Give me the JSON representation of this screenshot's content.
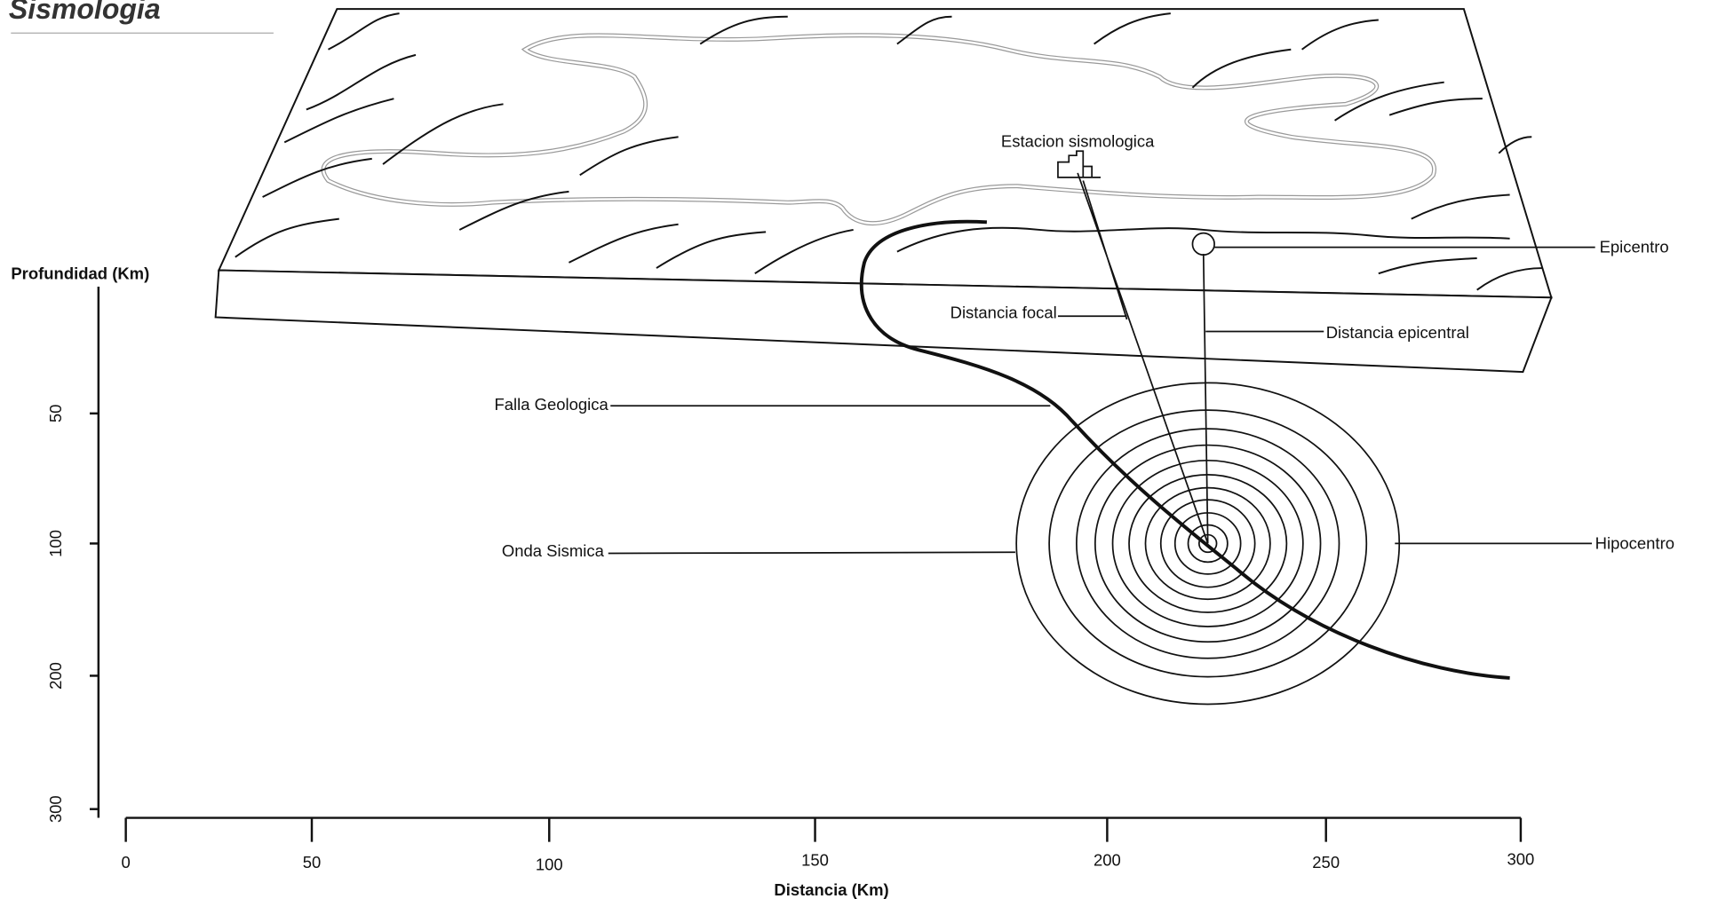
{
  "header": {
    "title": "Sismologia"
  },
  "labels": {
    "station": "Estacion sismologica",
    "epicenter": "Epicentro",
    "focal_distance": "Distancia focal",
    "epicentral_distance": "Distancia epicentral",
    "fault": "Falla Geologica",
    "wave": "Onda Sismica",
    "hypocenter": "Hipocentro"
  },
  "y_axis": {
    "title": "Profundidad (Km)",
    "ticks": [
      "50",
      "100",
      "200",
      "300"
    ]
  },
  "x_axis": {
    "title": "Distancia (Km)",
    "ticks": [
      "0",
      "50",
      "100",
      "150",
      "200",
      "250",
      "300"
    ]
  }
}
